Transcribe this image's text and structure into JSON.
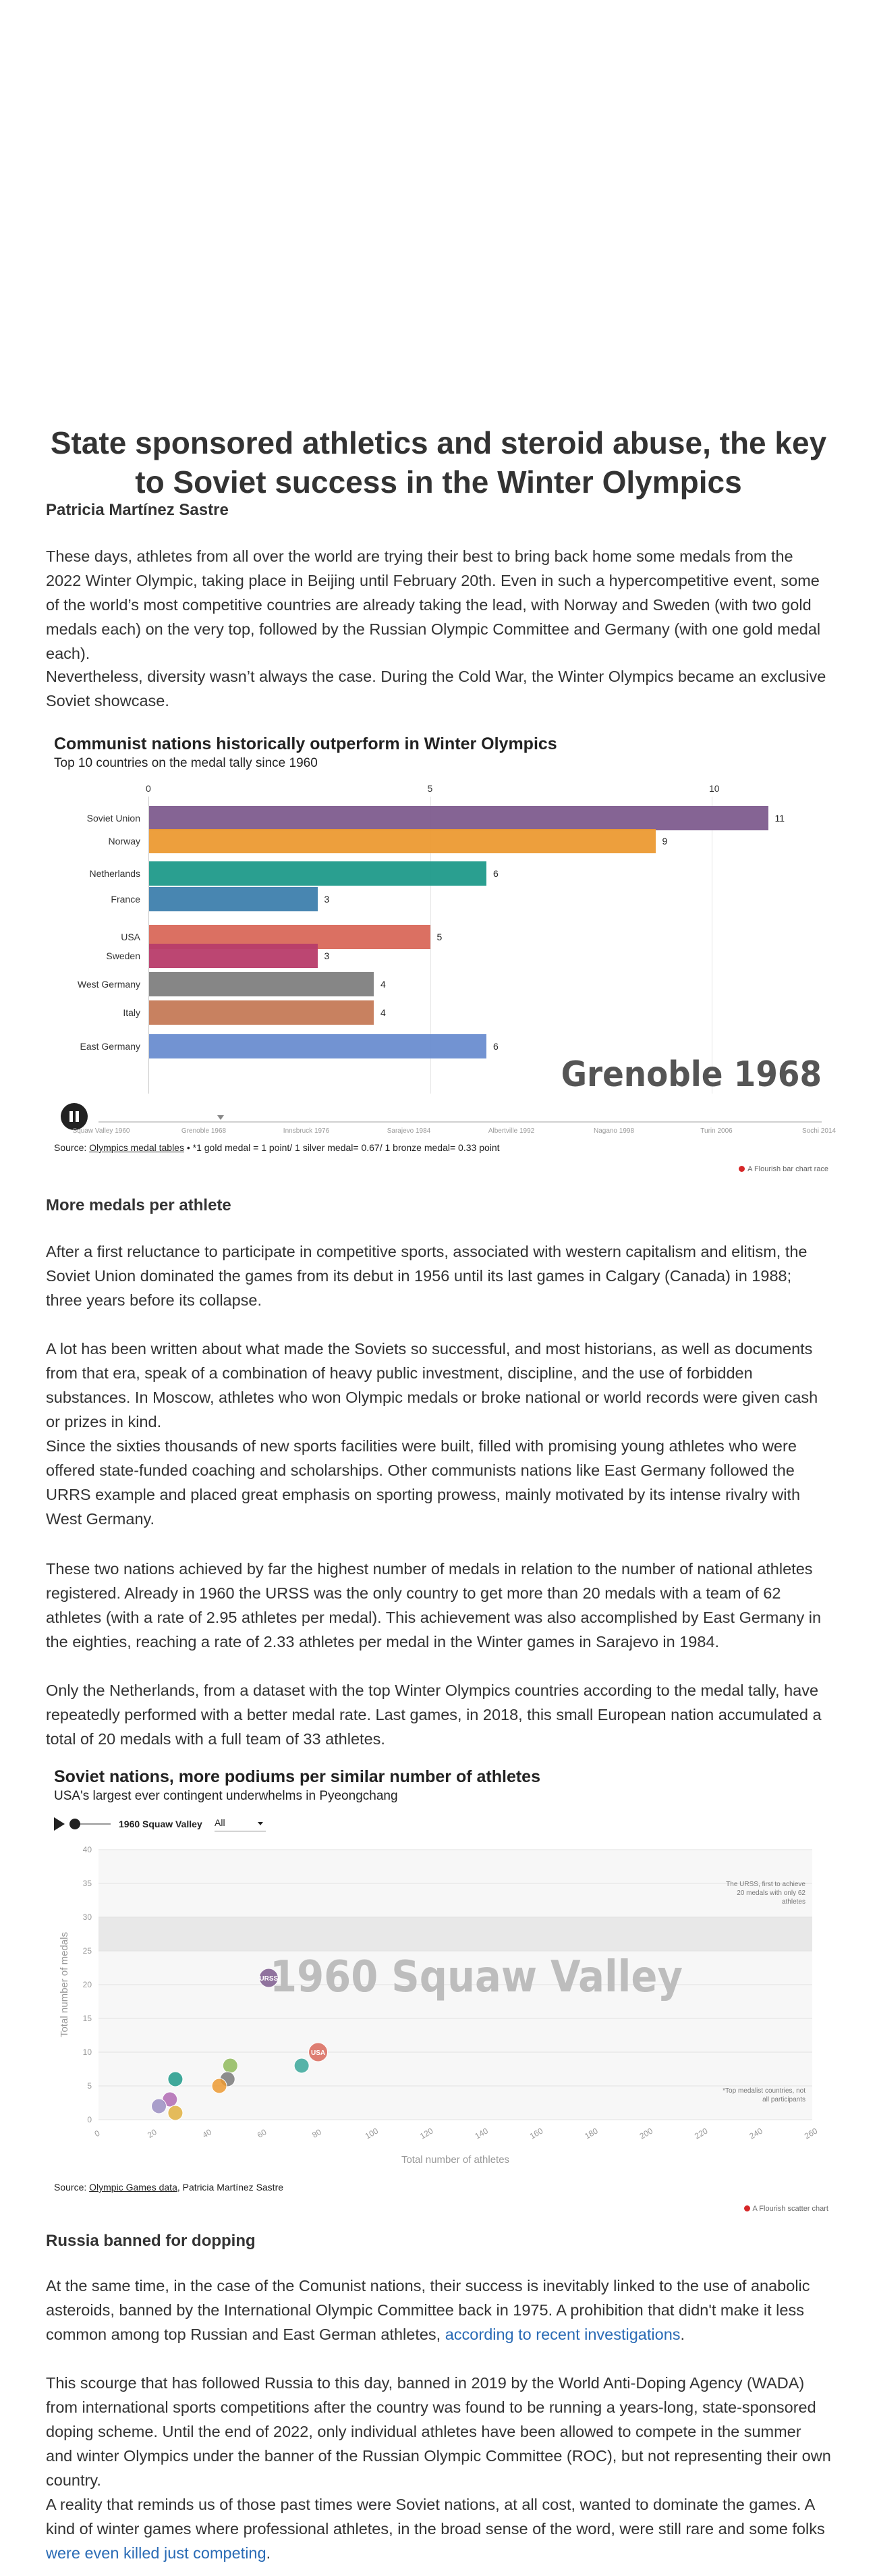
{
  "article": {
    "headline": "State sponsored athletics and steroid abuse, the key to Soviet success in the Winter Olympics",
    "author": "Patricia Martínez Sastre",
    "intro_p1": "These days, athletes from all over the world are trying their best to bring back home some medals from the 2022 Winter Olympic, taking place in Beijing until February 20th. Even in such a hypercompetitive event, some of the world’s most competitive countries are already taking the lead, with Norway and Sweden (with two gold medals each) on the very top, followed by the Russian Olympic Committee and Germany (with one gold medal each).",
    "intro_p2": "Nevertheless, diversity wasn’t always the case. During the Cold War, the Winter Olympics became an exclusive Soviet showcase.",
    "section1_heading": "More medals per athlete",
    "s1_p1": "After a first reluctance to participate in competitive sports, associated with western capitalism and elitism, the Soviet Union dominated the games from its debut in 1956 until its last games in Calgary (Canada) in 1988; three years before its collapse.",
    "s1_p2": "A lot has been written about what made the Soviets so successful, and most historians, as well as documents from that era, speak of a combination of heavy public investment, discipline, and the use of forbidden substances. In Moscow, athletes who won Olympic medals or broke national or world records were given cash or prizes in kind.",
    "s1_p3": "Since the sixties thousands of new sports facilities were built, filled with promising young athletes who were offered state-funded coaching and scholarships. Other communists nations like East Germany followed the URRS example and placed great emphasis on sporting prowess, mainly motivated by its intense rivalry with West Germany.",
    "s1_p4": "These two nations achieved by far the highest number of medals in relation to the number of national athletes registered. Already in 1960 the URSS was the only country to get more than 20 medals with a team of 62 athletes (with a rate of 2.95 athletes per medal). This achievement was also accomplished by East Germany in the eighties, reaching a rate of 2.33 athletes per medal in the Winter games in Sarajevo in 1984.",
    "s1_p5": "Only the Netherlands, from a dataset with the top Winter Olympics countries according to the medal tally, have repeatedly performed with a better medal rate. Last games, in 2018, this small European nation accumulated a total of 20 medals with a full team of 33 athletes.",
    "section2_heading": "Russia banned for dopping",
    "s2_p1_text": "At the same time, in the case of the Comunist nations, their success is inevitably linked to the use of anabolic asteroids, banned by the International Olympic Committee back in 1975. A prohibition that didn't make it less common among top Russian and East German athletes, ",
    "s2_p1_link": "according to recent investigations",
    "s2_p1_end": ".",
    "s2_p2": "This scourge that has followed Russia to this day, banned in 2019 by the World Anti-Doping Agency (WADA) from international sports competitions after the country was found to be running a years-long, state-sponsored doping scheme. Until the end of 2022, only individual athletes have been allowed to compete in the summer and winter Olympics under the banner of the Russian Olympic Committee (ROC), but not representing their own country.",
    "s2_p3_text": "A reality that reminds us of those past times were Soviet nations, at all cost, wanted to dominate the games. A kind of winter games where professional athletes, in the broad sense of the word, were still rare and some folks ",
    "s2_p3_link": "were even killed just competing",
    "s2_p3_end": "."
  },
  "chart1": {
    "title": "Communist nations historically outperform in Winter Olympics",
    "subtitle": "Top 10 countries on the medal tally since 1960",
    "year_label": "Grenoble 1968",
    "source_prefix": "Source: ",
    "source_link": "Olympics medal tables",
    "source_note": " • *1 gold medal = 1 point/ 1 silver medal= 0.67/ 1 bronze medal= 0.33 point",
    "flourish": "A Flourish bar chart race",
    "timeline": [
      "Squaw Valley 1960",
      "Grenoble 1968",
      "Innsbruck 1976",
      "Sarajevo 1984",
      "Albertville 1992",
      "Nagano 1998",
      "Turin 2006",
      "Sochi 2014"
    ]
  },
  "chart2": {
    "title": "Soviet nations, more podiums per similar number of athletes",
    "subtitle": "USA's largest ever contingent underwhelms in Pyeongchang",
    "play_year": "1960 Squaw Valley",
    "filter_value": "All",
    "year_watermark": "1960 Squaw Valley",
    "annotation_top": [
      "The URSS, first to achieve",
      "20 medals with only 62",
      "athletes"
    ],
    "annotation_bottom": [
      "*Top medalist countries, not",
      "all participants"
    ],
    "source_prefix": "Source: ",
    "source_link": "Olympic Games data",
    "source_rest": ", Patricia Martínez Sastre",
    "flourish": "A Flourish scatter chart"
  },
  "chart_data": [
    {
      "type": "bar",
      "title": "Communist nations historically outperform in Winter Olympics",
      "subtitle": "Top 10 countries on the medal tally since 1960",
      "xlim": [
        0,
        12
      ],
      "xticks": [
        0,
        5,
        10
      ],
      "categories": [
        "Soviet Union",
        "Norway",
        "Netherlands",
        "France",
        "USA",
        "Sweden",
        "West Germany",
        "Italy",
        "East Germany"
      ],
      "values": [
        11,
        9,
        6,
        3,
        5,
        3,
        4,
        4,
        6
      ],
      "colors": [
        "#7e5c8e",
        "#ec9a33",
        "#1f9a8a",
        "#3e7fad",
        "#d9685a",
        "#b83c6a",
        "#808080",
        "#c57a57",
        "#6a8dd0"
      ],
      "grid": "vertical",
      "legend": "none"
    },
    {
      "type": "scatter",
      "title": "Soviet nations, more podiums per similar number of athletes",
      "subtitle": "USA's largest ever contingent underwhelms in Pyeongchang",
      "xlabel": "Total number of athletes",
      "ylabel": "Total number of medals",
      "xlim": [
        0,
        260
      ],
      "ylim": [
        0,
        40
      ],
      "xticks": [
        0,
        20,
        40,
        60,
        80,
        100,
        120,
        140,
        160,
        180,
        200,
        220,
        240,
        260
      ],
      "yticks": [
        0,
        5,
        10,
        15,
        20,
        25,
        30,
        35,
        40
      ],
      "points": [
        {
          "label": "URSS",
          "x": 62,
          "y": 21,
          "color": "#7e5c8e"
        },
        {
          "label": "USA",
          "x": 80,
          "y": 10,
          "color": "#d9685a"
        },
        {
          "label": "",
          "x": 74,
          "y": 8,
          "color": "#3aa79a"
        },
        {
          "label": "",
          "x": 48,
          "y": 8,
          "color": "#8fba5a"
        },
        {
          "label": "",
          "x": 47,
          "y": 6,
          "color": "#7a7a7a"
        },
        {
          "label": "",
          "x": 44,
          "y": 5,
          "color": "#ec9a33"
        },
        {
          "label": "",
          "x": 28,
          "y": 6,
          "color": "#1f9a8a"
        },
        {
          "label": "",
          "x": 26,
          "y": 3,
          "color": "#b06ab3"
        },
        {
          "label": "",
          "x": 22,
          "y": 2,
          "color": "#9b8ec2"
        },
        {
          "label": "",
          "x": 28,
          "y": 1,
          "color": "#e0b040"
        }
      ],
      "shaded_band_y": [
        25,
        30
      ],
      "grid": "horizontal",
      "legend": "none"
    }
  ]
}
